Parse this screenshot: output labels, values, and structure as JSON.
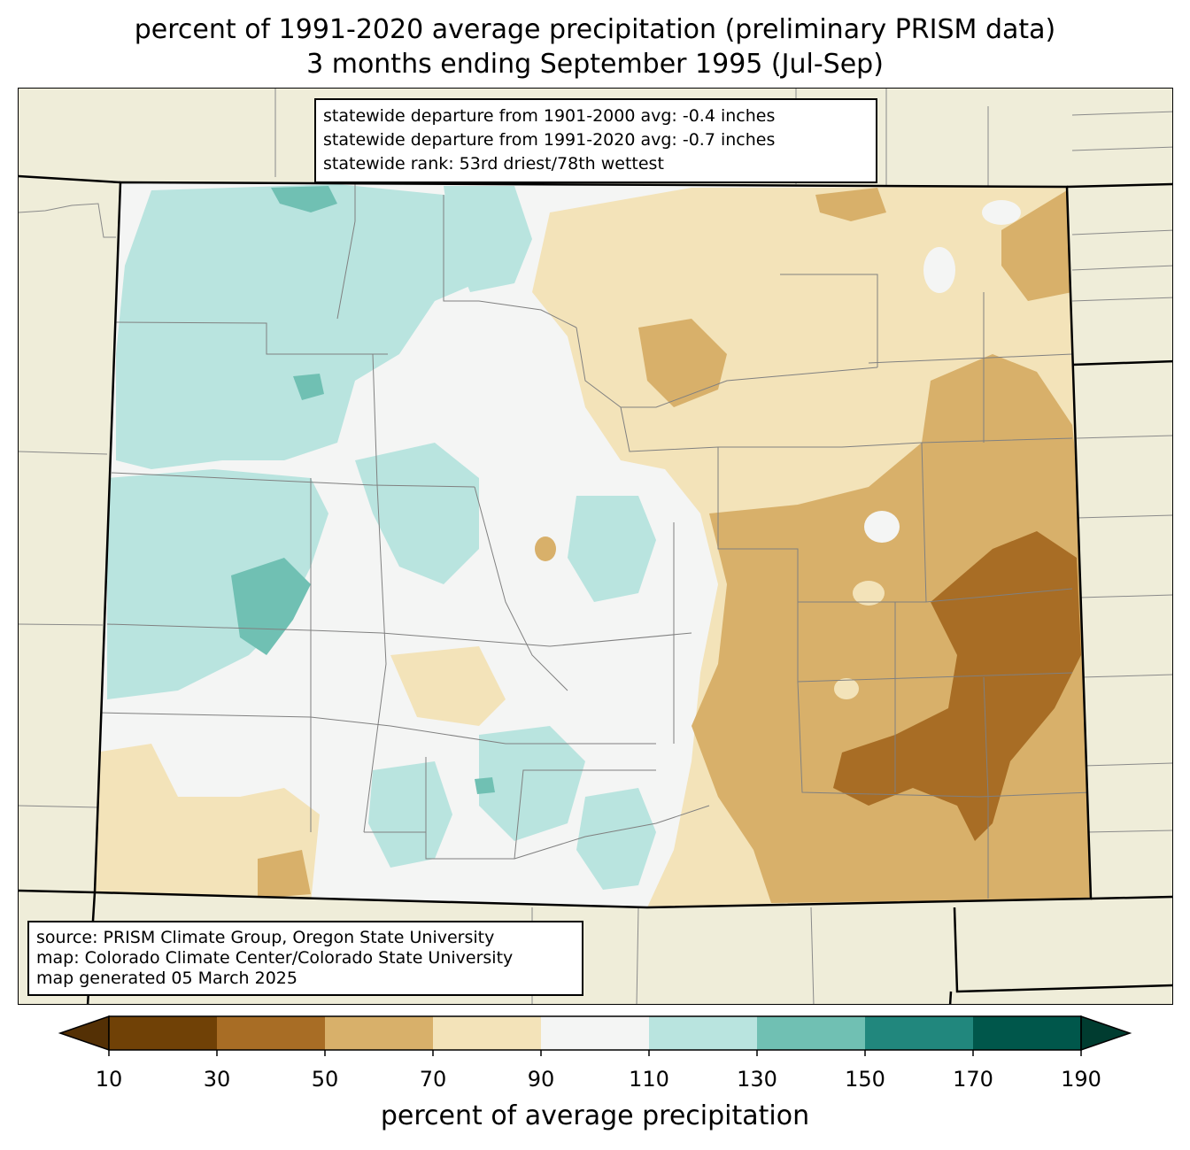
{
  "title": {
    "line1": "percent of 1991-2020 average precipitation (preliminary PRISM data)",
    "line2": "3 months ending September 1995 (Jul-Sep)"
  },
  "stats": {
    "dep_1901": "statewide departure from 1901-2000 avg: -0.4 inches",
    "dep_1991": "statewide departure from 1991-2020 avg: -0.7 inches",
    "rank": "statewide rank: 53rd driest/78th wettest"
  },
  "source": {
    "line1": "source: PRISM Climate Group, Oregon State University",
    "line2": "map: Colorado Climate Center/Colorado State University",
    "line3": "map generated 05 March 2025"
  },
  "colorbar": {
    "label": "percent of average precipitation",
    "ticks": [
      "10",
      "30",
      "50",
      "70",
      "90",
      "110",
      "130",
      "150",
      "170",
      "190"
    ],
    "under_color": "#543005",
    "over_color": "#003c30",
    "bin_colors": [
      "#704106",
      "#a86d25",
      "#d8b06a",
      "#f3e3b9",
      "#f4f5f4",
      "#b9e4df",
      "#70c0b3",
      "#21877d",
      "#00574b"
    ]
  },
  "map_colors": {
    "background": "#efedd9",
    "c10_30": "#704106",
    "c30_50": "#a86d25",
    "c50_70": "#d8b06a",
    "c70_90": "#f3e3b9",
    "c90_110": "#f4f5f4",
    "c110_130": "#b9e4df",
    "c130_150": "#70c0b3",
    "county_lines": "#808080"
  }
}
